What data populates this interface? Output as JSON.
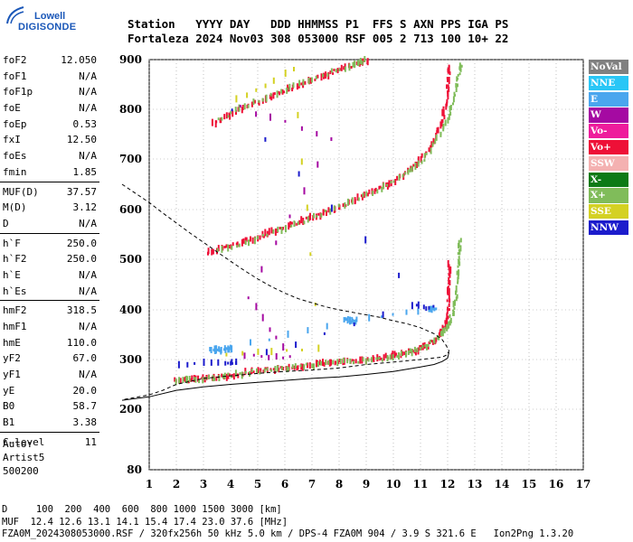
{
  "logo": {
    "line1": "Lowell",
    "line2": "DIGISONDE"
  },
  "header": {
    "line1": "Station   YYYY DAY   DDD HHMMSS P1  FFS S AXN PPS IGA PS",
    "line2": "Fortaleza 2024 Nov03 308 053000 RSF 005 2 713 100 10+ 22"
  },
  "params": [
    {
      "label": "foF2",
      "value": "12.050"
    },
    {
      "label": "foF1",
      "value": "N/A"
    },
    {
      "label": "foF1p",
      "value": "N/A"
    },
    {
      "label": "foE",
      "value": "N/A"
    },
    {
      "label": "foEp",
      "value": "0.53"
    },
    {
      "label": "fxI",
      "value": "12.50"
    },
    {
      "label": "foEs",
      "value": "N/A"
    },
    {
      "label": "fmin",
      "value": "1.85"
    },
    {
      "label": "MUF(D)",
      "value": "37.57"
    },
    {
      "label": "M(D)",
      "value": "3.12"
    },
    {
      "label": "D",
      "value": "N/A"
    },
    {
      "label": "h`F",
      "value": "250.0"
    },
    {
      "label": "h`F2",
      "value": "250.0"
    },
    {
      "label": "h`E",
      "value": "N/A"
    },
    {
      "label": "h`Es",
      "value": "N/A"
    },
    {
      "label": "hmF2",
      "value": "318.5"
    },
    {
      "label": "hmF1",
      "value": "N/A"
    },
    {
      "label": "hmE",
      "value": "110.0"
    },
    {
      "label": "yF2",
      "value": "67.0"
    },
    {
      "label": "yF1",
      "value": "N/A"
    },
    {
      "label": "yE",
      "value": "20.0"
    },
    {
      "label": "B0",
      "value": "58.7"
    },
    {
      "label": "B1",
      "value": "3.38"
    },
    {
      "label": "C-level",
      "value": "11"
    }
  ],
  "auto": {
    "line1": "Auto:",
    "line2": "Artist5",
    "line3": "500200"
  },
  "legend": [
    {
      "label": "NoVal",
      "color": "#808080"
    },
    {
      "label": "NNE",
      "color": "#29c6f6"
    },
    {
      "label": "E",
      "color": "#4aa6ee"
    },
    {
      "label": "W",
      "color": "#a50aa2"
    },
    {
      "label": "Vo-",
      "color": "#ee1c9c"
    },
    {
      "label": "Vo+",
      "color": "#ee1037"
    },
    {
      "label": "SSW",
      "color": "#f4b1b1"
    },
    {
      "label": "X-",
      "color": "#0d7a16"
    },
    {
      "label": "X+",
      "color": "#80bc5a"
    },
    {
      "label": "SSE",
      "color": "#d4d123"
    },
    {
      "label": "NNW",
      "color": "#1c1ccc"
    }
  ],
  "footer": {
    "line1": "D     100  200  400  600  800 1000 1500 3000 [km]",
    "line2": "MUF  12.4 12.6 13.1 14.1 15.4 17.4 23.0 37.6 [MHz]",
    "line3": "FZA0M_2024308053000.RSF / 320fx256h 50 kHz 5.0 km / DPS-4 FZA0M 904 / 3.9 S 321.6 E   Ion2Png 1.3.20"
  },
  "chart_data": {
    "type": "scatter",
    "x_ticks": [
      "1",
      "2",
      "3",
      "4",
      "5",
      "6",
      "7",
      "8",
      "9",
      "10",
      "11",
      "12",
      "13",
      "14",
      "15",
      "16",
      "17"
    ],
    "y_ticks": [
      "80",
      "200",
      "300",
      "400",
      "500",
      "600",
      "700",
      "800",
      "900"
    ],
    "xlim": [
      1,
      17
    ],
    "y_axis_scale": "non-linear",
    "y_tick_values": [
      80,
      200,
      300,
      400,
      500,
      600,
      700,
      800,
      900
    ],
    "grid": true,
    "series": [
      {
        "color": "#ee1037",
        "points": [
          [
            1.9,
            257
          ],
          [
            2.3,
            258
          ],
          [
            2.7,
            260
          ],
          [
            3.2,
            262
          ],
          [
            3.7,
            266
          ],
          [
            4.2,
            270
          ],
          [
            4.7,
            274
          ],
          [
            5.2,
            278
          ],
          [
            5.7,
            281
          ],
          [
            6.2,
            284
          ],
          [
            6.7,
            287
          ],
          [
            7.2,
            290
          ],
          [
            7.7,
            293
          ],
          [
            8.2,
            296
          ],
          [
            8.7,
            298
          ],
          [
            9.2,
            301
          ],
          [
            9.7,
            305
          ],
          [
            10.2,
            310
          ],
          [
            10.6,
            315
          ],
          [
            10.9,
            320
          ],
          [
            11.2,
            327
          ],
          [
            11.5,
            338
          ],
          [
            11.7,
            350
          ],
          [
            11.85,
            365
          ],
          [
            11.95,
            385
          ],
          [
            12.0,
            410
          ],
          [
            12.02,
            440
          ],
          [
            12.03,
            470
          ],
          [
            12.04,
            490
          ]
        ]
      },
      {
        "color": "#ee1037",
        "points": [
          [
            3.1,
            515
          ],
          [
            3.6,
            520
          ],
          [
            4.1,
            528
          ],
          [
            4.6,
            537
          ],
          [
            5.1,
            547
          ],
          [
            5.6,
            557
          ],
          [
            6.1,
            567
          ],
          [
            6.6,
            577
          ],
          [
            7.1,
            587
          ],
          [
            7.6,
            597
          ],
          [
            8.1,
            609
          ],
          [
            8.6,
            620
          ],
          [
            9.1,
            632
          ],
          [
            9.6,
            645
          ],
          [
            10.1,
            660
          ],
          [
            10.5,
            675
          ],
          [
            10.9,
            695
          ],
          [
            11.2,
            715
          ],
          [
            11.5,
            740
          ],
          [
            11.7,
            765
          ],
          [
            11.85,
            795
          ],
          [
            11.95,
            830
          ],
          [
            12.0,
            860
          ],
          [
            12.02,
            890
          ]
        ]
      },
      {
        "color": "#ee1037",
        "points": [
          [
            3.3,
            770
          ],
          [
            3.8,
            785
          ],
          [
            4.3,
            798
          ],
          [
            4.8,
            810
          ],
          [
            5.3,
            822
          ],
          [
            5.8,
            833
          ],
          [
            6.3,
            845
          ],
          [
            6.8,
            856
          ],
          [
            7.3,
            866
          ],
          [
            7.8,
            876
          ],
          [
            8.3,
            885
          ],
          [
            8.8,
            894
          ],
          [
            9.0,
            899
          ]
        ]
      },
      {
        "color": "#80bc5a",
        "points": [
          [
            2.0,
            255
          ],
          [
            2.6,
            258
          ],
          [
            3.3,
            262
          ],
          [
            4.0,
            268
          ],
          [
            4.8,
            275
          ],
          [
            5.6,
            280
          ],
          [
            6.4,
            286
          ],
          [
            7.2,
            290
          ],
          [
            8.0,
            295
          ],
          [
            8.8,
            298
          ],
          [
            9.6,
            302
          ],
          [
            10.2,
            308
          ],
          [
            10.8,
            318
          ],
          [
            11.3,
            330
          ],
          [
            11.7,
            350
          ],
          [
            12.0,
            370
          ],
          [
            12.2,
            400
          ],
          [
            12.3,
            430
          ],
          [
            12.35,
            470
          ],
          [
            12.4,
            510
          ],
          [
            12.42,
            535
          ]
        ]
      },
      {
        "color": "#80bc5a",
        "points": [
          [
            3.5,
            520
          ],
          [
            4.5,
            533
          ],
          [
            5.5,
            553
          ],
          [
            6.5,
            574
          ],
          [
            7.5,
            595
          ],
          [
            8.5,
            618
          ],
          [
            9.5,
            643
          ],
          [
            10.3,
            665
          ],
          [
            10.9,
            690
          ],
          [
            11.4,
            720
          ],
          [
            11.8,
            760
          ],
          [
            12.1,
            800
          ],
          [
            12.3,
            840
          ],
          [
            12.4,
            875
          ],
          [
            12.45,
            888
          ]
        ]
      },
      {
        "color": "#80bc5a",
        "points": [
          [
            3.5,
            780
          ],
          [
            4.5,
            805
          ],
          [
            5.5,
            828
          ],
          [
            6.5,
            850
          ],
          [
            7.5,
            872
          ],
          [
            8.5,
            890
          ],
          [
            8.9,
            898
          ]
        ]
      },
      {
        "color": "#4aa6ee",
        "points": [
          [
            3.2,
            318
          ],
          [
            3.4,
            319
          ],
          [
            3.6,
            320
          ],
          [
            3.8,
            321
          ],
          [
            4.0,
            322
          ],
          [
            8.2,
            378
          ],
          [
            8.4,
            378
          ],
          [
            8.6,
            378
          ],
          [
            11.3,
            402
          ],
          [
            11.5,
            403
          ]
        ]
      },
      {
        "color": "#1c1ccc",
        "points": [
          [
            2.1,
            290
          ],
          [
            3.8,
            293
          ],
          [
            4.2,
            296
          ],
          [
            10.7,
            408
          ],
          [
            11.4,
            405
          ],
          [
            4.0,
            802
          ]
        ]
      },
      {
        "color": "#a50aa2",
        "points": [
          [
            4.5,
            308
          ],
          [
            6.2,
            303
          ],
          [
            4.6,
            424
          ],
          [
            7.7,
            743
          ],
          [
            4.3,
            804
          ]
        ]
      },
      {
        "color": "#d4d123",
        "points": [
          [
            3.8,
            310
          ],
          [
            7.2,
            320
          ],
          [
            6.3,
            882
          ],
          [
            4.2,
            818
          ]
        ]
      }
    ],
    "virtual_height_model": [
      [
        0.0,
        650
      ],
      [
        1.0,
        614
      ],
      [
        1.5,
        593
      ],
      [
        2.0,
        573
      ],
      [
        2.5,
        553
      ],
      [
        3.0,
        534
      ],
      [
        3.5,
        515
      ],
      [
        4.0,
        496
      ],
      [
        4.5,
        478
      ],
      [
        5.0,
        461
      ],
      [
        5.5,
        446
      ],
      [
        6.0,
        433
      ],
      [
        6.5,
        422
      ],
      [
        7.0,
        414
      ],
      [
        7.5,
        406
      ],
      [
        8.0,
        400
      ],
      [
        8.5,
        395
      ],
      [
        9.0,
        390
      ],
      [
        9.5,
        385
      ],
      [
        10.0,
        378
      ],
      [
        10.5,
        372
      ],
      [
        11.0,
        364
      ],
      [
        11.5,
        352
      ],
      [
        11.8,
        340
      ],
      [
        11.95,
        328
      ],
      [
        12.05,
        318
      ],
      [
        12.0,
        310
      ],
      [
        11.8,
        305
      ],
      [
        11.0,
        300
      ],
      [
        10.0,
        295
      ],
      [
        9.0,
        290
      ],
      [
        8.0,
        283
      ],
      [
        7.0,
        279
      ],
      [
        6.0,
        276
      ],
      [
        5.0,
        272
      ],
      [
        4.0,
        267
      ],
      [
        3.0,
        262
      ],
      [
        2.0,
        250
      ],
      [
        1.5,
        238
      ],
      [
        1.0,
        229
      ],
      [
        0.0,
        219
      ]
    ],
    "true_height_profile": [
      [
        0.0,
        218
      ],
      [
        1.0,
        225
      ],
      [
        2.0,
        238
      ],
      [
        3.0,
        245
      ],
      [
        4.0,
        250
      ],
      [
        5.0,
        254
      ],
      [
        6.0,
        258
      ],
      [
        7.0,
        262
      ],
      [
        8.0,
        265
      ],
      [
        9.0,
        270
      ],
      [
        10.0,
        276
      ],
      [
        11.0,
        285
      ],
      [
        11.5,
        290
      ],
      [
        11.8,
        296
      ],
      [
        12.0,
        303
      ],
      [
        12.05,
        315
      ]
    ]
  }
}
